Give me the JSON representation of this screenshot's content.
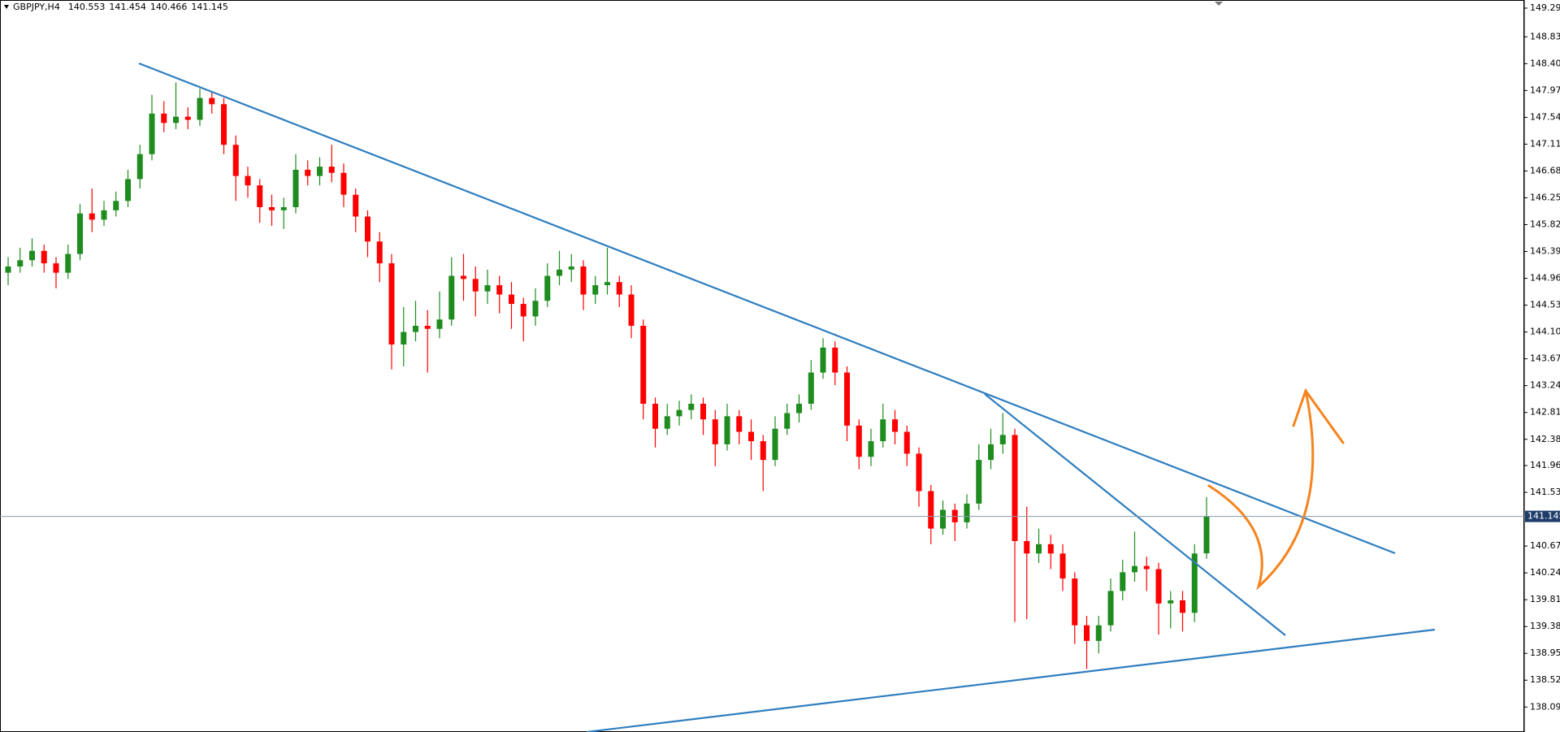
{
  "chart_data": {
    "type": "candlestick",
    "title": "GBPJPY,H4",
    "up_color": "#1e8c1e",
    "down_color": "#ff0000",
    "ylim": [
      137.69,
      149.42
    ],
    "yticks": [
      {
        "value": 149.29,
        "label": "149.290"
      },
      {
        "value": 148.83,
        "label": "148.830"
      },
      {
        "value": 148.4,
        "label": "148.400"
      },
      {
        "value": 147.97,
        "label": "147.970"
      },
      {
        "value": 147.54,
        "label": "147.540"
      },
      {
        "value": 147.11,
        "label": "147.110"
      },
      {
        "value": 146.68,
        "label": "146.680"
      },
      {
        "value": 146.25,
        "label": "146.250"
      },
      {
        "value": 145.82,
        "label": "145.820"
      },
      {
        "value": 145.39,
        "label": "145.390"
      },
      {
        "value": 144.96,
        "label": "144.960"
      },
      {
        "value": 144.53,
        "label": "144.530"
      },
      {
        "value": 144.1,
        "label": "144.100"
      },
      {
        "value": 143.67,
        "label": "143.670"
      },
      {
        "value": 143.24,
        "label": "143.240"
      },
      {
        "value": 142.81,
        "label": "142.810"
      },
      {
        "value": 142.38,
        "label": "142.380"
      },
      {
        "value": 141.96,
        "label": "141.960"
      },
      {
        "value": 141.53,
        "label": "141.530"
      },
      {
        "value": 140.67,
        "label": "140.670"
      },
      {
        "value": 140.24,
        "label": "140.240"
      },
      {
        "value": 139.81,
        "label": "139.810"
      },
      {
        "value": 139.38,
        "label": "139.380"
      },
      {
        "value": 138.95,
        "label": "138.950"
      },
      {
        "value": 138.52,
        "label": "138.520"
      },
      {
        "value": 138.09,
        "label": "138.090"
      }
    ],
    "candles": [
      [
        145.05,
        145.3,
        144.85,
        145.15
      ],
      [
        145.15,
        145.45,
        145.05,
        145.25
      ],
      [
        145.25,
        145.6,
        145.15,
        145.4
      ],
      [
        145.4,
        145.5,
        145.05,
        145.2
      ],
      [
        145.2,
        145.3,
        144.8,
        145.05
      ],
      [
        145.05,
        145.5,
        144.95,
        145.35
      ],
      [
        145.35,
        146.15,
        145.25,
        146.0
      ],
      [
        146.0,
        146.4,
        145.7,
        145.9
      ],
      [
        145.9,
        146.2,
        145.8,
        146.05
      ],
      [
        146.05,
        146.35,
        145.95,
        146.2
      ],
      [
        146.2,
        146.7,
        146.1,
        146.55
      ],
      [
        146.55,
        147.1,
        146.4,
        146.95
      ],
      [
        146.95,
        147.9,
        146.85,
        147.6
      ],
      [
        147.6,
        147.8,
        147.3,
        147.45
      ],
      [
        147.45,
        148.1,
        147.35,
        147.55
      ],
      [
        147.55,
        147.7,
        147.35,
        147.5
      ],
      [
        147.5,
        148.0,
        147.4,
        147.85
      ],
      [
        147.85,
        147.95,
        147.6,
        147.75
      ],
      [
        147.75,
        147.85,
        146.95,
        147.1
      ],
      [
        147.1,
        147.25,
        146.2,
        146.6
      ],
      [
        146.6,
        146.75,
        146.25,
        146.45
      ],
      [
        146.45,
        146.55,
        145.85,
        146.1
      ],
      [
        146.1,
        146.3,
        145.8,
        146.05
      ],
      [
        146.05,
        146.25,
        145.75,
        146.1
      ],
      [
        146.1,
        146.95,
        146.0,
        146.7
      ],
      [
        146.7,
        146.85,
        146.45,
        146.6
      ],
      [
        146.6,
        146.9,
        146.45,
        146.75
      ],
      [
        146.75,
        147.1,
        146.5,
        146.65
      ],
      [
        146.65,
        146.8,
        146.1,
        146.3
      ],
      [
        146.3,
        146.4,
        145.7,
        145.95
      ],
      [
        145.95,
        146.05,
        145.3,
        145.55
      ],
      [
        145.55,
        145.7,
        144.9,
        145.2
      ],
      [
        145.2,
        145.35,
        143.5,
        143.9
      ],
      [
        143.9,
        144.5,
        143.55,
        144.1
      ],
      [
        144.1,
        144.6,
        143.95,
        144.2
      ],
      [
        144.2,
        144.45,
        143.45,
        144.15
      ],
      [
        144.15,
        144.75,
        144.0,
        144.3
      ],
      [
        144.3,
        145.3,
        144.2,
        145.0
      ],
      [
        145.0,
        145.35,
        144.6,
        144.95
      ],
      [
        144.95,
        145.15,
        144.35,
        144.75
      ],
      [
        144.75,
        145.1,
        144.55,
        144.85
      ],
      [
        144.85,
        145.0,
        144.4,
        144.7
      ],
      [
        144.7,
        144.9,
        144.15,
        144.55
      ],
      [
        144.55,
        144.65,
        143.95,
        144.35
      ],
      [
        144.35,
        144.8,
        144.2,
        144.6
      ],
      [
        144.6,
        145.2,
        144.5,
        145.0
      ],
      [
        145.0,
        145.4,
        144.85,
        145.1
      ],
      [
        145.1,
        145.35,
        144.9,
        145.15
      ],
      [
        145.15,
        145.25,
        144.45,
        144.7
      ],
      [
        144.7,
        145.0,
        144.55,
        144.85
      ],
      [
        144.85,
        145.45,
        144.7,
        144.9
      ],
      [
        144.9,
        145.0,
        144.5,
        144.7
      ],
      [
        144.7,
        144.85,
        144.0,
        144.2
      ],
      [
        144.2,
        144.3,
        142.7,
        142.95
      ],
      [
        142.95,
        143.05,
        142.25,
        142.55
      ],
      [
        142.55,
        142.95,
        142.45,
        142.75
      ],
      [
        142.75,
        143.0,
        142.6,
        142.85
      ],
      [
        142.85,
        143.1,
        142.7,
        142.95
      ],
      [
        142.95,
        143.05,
        142.45,
        142.7
      ],
      [
        142.7,
        142.85,
        141.95,
        142.3
      ],
      [
        142.3,
        142.95,
        142.2,
        142.75
      ],
      [
        142.75,
        142.85,
        142.3,
        142.5
      ],
      [
        142.5,
        142.7,
        142.05,
        142.35
      ],
      [
        142.35,
        142.45,
        141.55,
        142.05
      ],
      [
        142.05,
        142.75,
        141.95,
        142.55
      ],
      [
        142.55,
        142.95,
        142.45,
        142.8
      ],
      [
        142.8,
        143.1,
        142.65,
        142.95
      ],
      [
        142.95,
        143.65,
        142.85,
        143.45
      ],
      [
        143.45,
        144.0,
        143.35,
        143.85
      ],
      [
        143.85,
        143.95,
        143.25,
        143.45
      ],
      [
        143.45,
        143.55,
        142.35,
        142.6
      ],
      [
        142.6,
        142.7,
        141.9,
        142.1
      ],
      [
        142.1,
        142.55,
        141.95,
        142.35
      ],
      [
        142.35,
        142.95,
        142.25,
        142.7
      ],
      [
        142.7,
        142.85,
        142.3,
        142.5
      ],
      [
        142.5,
        142.6,
        141.95,
        142.15
      ],
      [
        142.15,
        142.25,
        141.3,
        141.55
      ],
      [
        141.55,
        141.65,
        140.7,
        140.95
      ],
      [
        140.95,
        141.4,
        140.85,
        141.25
      ],
      [
        141.25,
        141.35,
        140.75,
        141.05
      ],
      [
        141.05,
        141.5,
        140.95,
        141.35
      ],
      [
        141.35,
        142.3,
        141.25,
        142.05
      ],
      [
        142.05,
        142.55,
        141.9,
        142.3
      ],
      [
        142.3,
        142.8,
        142.15,
        142.45
      ],
      [
        142.45,
        142.55,
        139.45,
        140.75
      ],
      [
        140.75,
        141.3,
        139.5,
        140.55
      ],
      [
        140.55,
        140.95,
        140.4,
        140.7
      ],
      [
        140.7,
        140.85,
        140.3,
        140.55
      ],
      [
        140.55,
        140.7,
        139.95,
        140.15
      ],
      [
        140.15,
        140.25,
        139.1,
        139.4
      ],
      [
        139.4,
        139.55,
        138.7,
        139.15
      ],
      [
        139.15,
        139.55,
        138.95,
        139.4
      ],
      [
        139.4,
        140.15,
        139.3,
        139.95
      ],
      [
        139.95,
        140.45,
        139.8,
        140.25
      ],
      [
        140.25,
        140.9,
        140.1,
        140.35
      ],
      [
        140.35,
        140.5,
        139.95,
        140.3
      ],
      [
        140.3,
        140.4,
        139.25,
        139.75
      ],
      [
        139.75,
        139.95,
        139.35,
        139.8
      ],
      [
        139.8,
        139.95,
        139.3,
        139.6
      ],
      [
        139.6,
        140.7,
        139.45,
        140.55
      ],
      [
        140.553,
        141.454,
        140.466,
        141.145
      ]
    ]
  }
}
